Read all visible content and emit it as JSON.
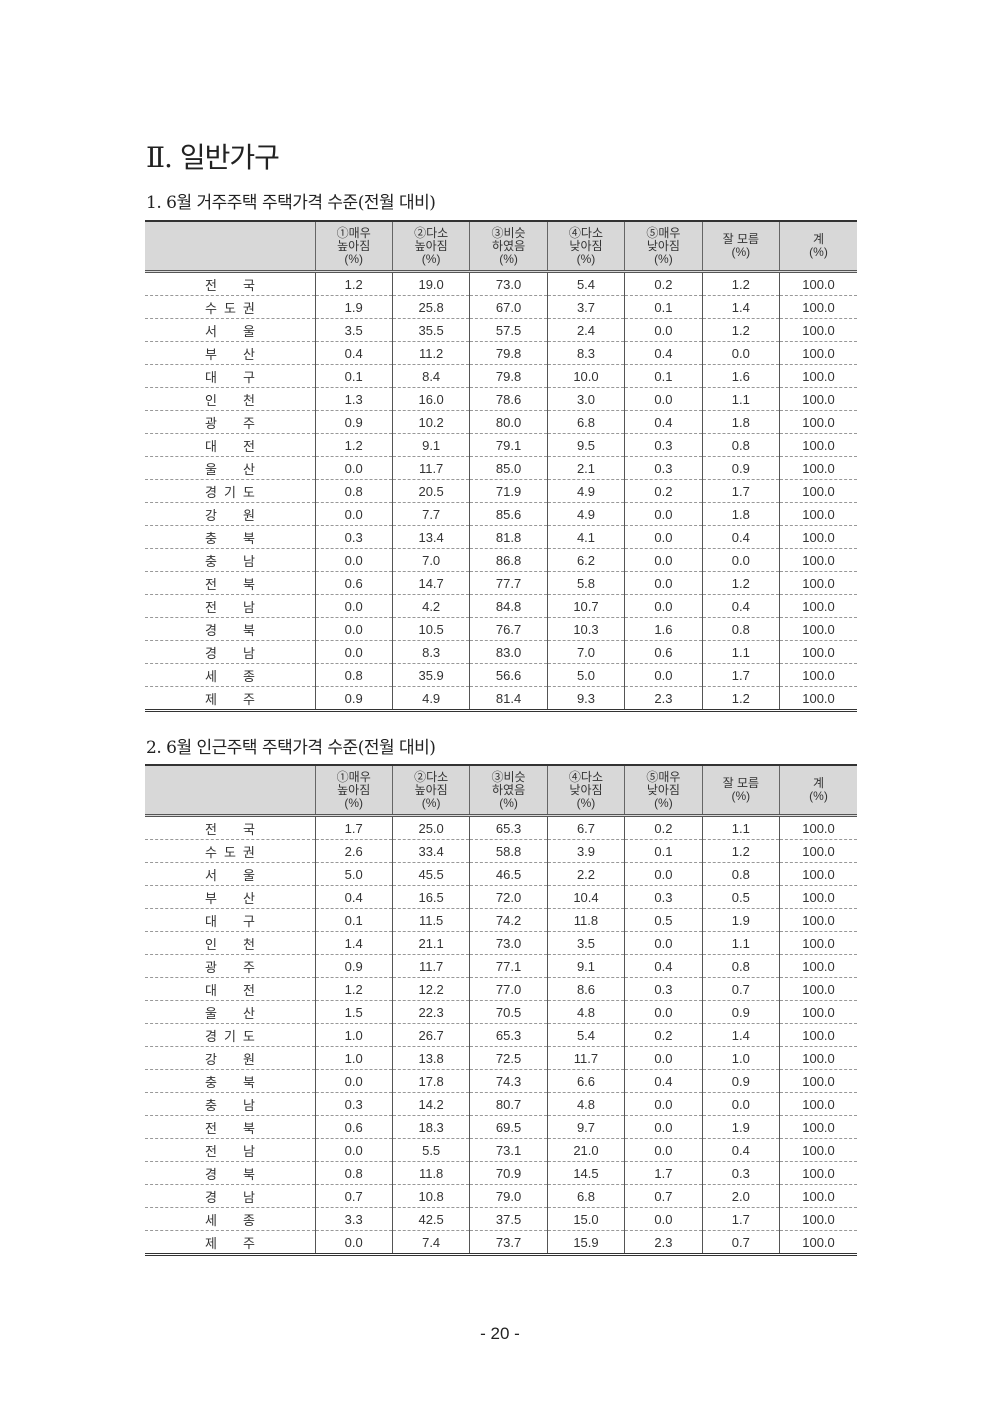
{
  "section_title": "Ⅱ. 일반가구",
  "headers": [
    "",
    "①매우\n높아짐\n(%)",
    "②다소\n높아짐\n(%)",
    "③비슷\n하였음\n(%)",
    "④다소\n낮아짐\n(%)",
    "⑤매우\n낮아짐\n(%)",
    "잘 모름\n(%)",
    "계\n(%)"
  ],
  "tables": [
    {
      "title": "1. 6월 거주주택 주택가격 수준(전월 대비)",
      "rows": [
        [
          "전국",
          "1.2",
          "19.0",
          "73.0",
          "5.4",
          "0.2",
          "1.2",
          "100.0"
        ],
        [
          "수도권",
          "1.9",
          "25.8",
          "67.0",
          "3.7",
          "0.1",
          "1.4",
          "100.0"
        ],
        [
          "서울",
          "3.5",
          "35.5",
          "57.5",
          "2.4",
          "0.0",
          "1.2",
          "100.0"
        ],
        [
          "부산",
          "0.4",
          "11.2",
          "79.8",
          "8.3",
          "0.4",
          "0.0",
          "100.0"
        ],
        [
          "대구",
          "0.1",
          "8.4",
          "79.8",
          "10.0",
          "0.1",
          "1.6",
          "100.0"
        ],
        [
          "인천",
          "1.3",
          "16.0",
          "78.6",
          "3.0",
          "0.0",
          "1.1",
          "100.0"
        ],
        [
          "광주",
          "0.9",
          "10.2",
          "80.0",
          "6.8",
          "0.4",
          "1.8",
          "100.0"
        ],
        [
          "대전",
          "1.2",
          "9.1",
          "79.1",
          "9.5",
          "0.3",
          "0.8",
          "100.0"
        ],
        [
          "울산",
          "0.0",
          "11.7",
          "85.0",
          "2.1",
          "0.3",
          "0.9",
          "100.0"
        ],
        [
          "경기도",
          "0.8",
          "20.5",
          "71.9",
          "4.9",
          "0.2",
          "1.7",
          "100.0"
        ],
        [
          "강원",
          "0.0",
          "7.7",
          "85.6",
          "4.9",
          "0.0",
          "1.8",
          "100.0"
        ],
        [
          "충북",
          "0.3",
          "13.4",
          "81.8",
          "4.1",
          "0.0",
          "0.4",
          "100.0"
        ],
        [
          "충남",
          "0.0",
          "7.0",
          "86.8",
          "6.2",
          "0.0",
          "0.0",
          "100.0"
        ],
        [
          "전북",
          "0.6",
          "14.7",
          "77.7",
          "5.8",
          "0.0",
          "1.2",
          "100.0"
        ],
        [
          "전남",
          "0.0",
          "4.2",
          "84.8",
          "10.7",
          "0.0",
          "0.4",
          "100.0"
        ],
        [
          "경북",
          "0.0",
          "10.5",
          "76.7",
          "10.3",
          "1.6",
          "0.8",
          "100.0"
        ],
        [
          "경남",
          "0.0",
          "8.3",
          "83.0",
          "7.0",
          "0.6",
          "1.1",
          "100.0"
        ],
        [
          "세종",
          "0.8",
          "35.9",
          "56.6",
          "5.0",
          "0.0",
          "1.7",
          "100.0"
        ],
        [
          "제주",
          "0.9",
          "4.9",
          "81.4",
          "9.3",
          "2.3",
          "1.2",
          "100.0"
        ]
      ]
    },
    {
      "title": "2. 6월 인근주택 주택가격 수준(전월 대비)",
      "rows": [
        [
          "전국",
          "1.7",
          "25.0",
          "65.3",
          "6.7",
          "0.2",
          "1.1",
          "100.0"
        ],
        [
          "수도권",
          "2.6",
          "33.4",
          "58.8",
          "3.9",
          "0.1",
          "1.2",
          "100.0"
        ],
        [
          "서울",
          "5.0",
          "45.5",
          "46.5",
          "2.2",
          "0.0",
          "0.8",
          "100.0"
        ],
        [
          "부산",
          "0.4",
          "16.5",
          "72.0",
          "10.4",
          "0.3",
          "0.5",
          "100.0"
        ],
        [
          "대구",
          "0.1",
          "11.5",
          "74.2",
          "11.8",
          "0.5",
          "1.9",
          "100.0"
        ],
        [
          "인천",
          "1.4",
          "21.1",
          "73.0",
          "3.5",
          "0.0",
          "1.1",
          "100.0"
        ],
        [
          "광주",
          "0.9",
          "11.7",
          "77.1",
          "9.1",
          "0.4",
          "0.8",
          "100.0"
        ],
        [
          "대전",
          "1.2",
          "12.2",
          "77.0",
          "8.6",
          "0.3",
          "0.7",
          "100.0"
        ],
        [
          "울산",
          "1.5",
          "22.3",
          "70.5",
          "4.8",
          "0.0",
          "0.9",
          "100.0"
        ],
        [
          "경기도",
          "1.0",
          "26.7",
          "65.3",
          "5.4",
          "0.2",
          "1.4",
          "100.0"
        ],
        [
          "강원",
          "1.0",
          "13.8",
          "72.5",
          "11.7",
          "0.0",
          "1.0",
          "100.0"
        ],
        [
          "충북",
          "0.0",
          "17.8",
          "74.3",
          "6.6",
          "0.4",
          "0.9",
          "100.0"
        ],
        [
          "충남",
          "0.3",
          "14.2",
          "80.7",
          "4.8",
          "0.0",
          "0.0",
          "100.0"
        ],
        [
          "전북",
          "0.6",
          "18.3",
          "69.5",
          "9.7",
          "0.0",
          "1.9",
          "100.0"
        ],
        [
          "전남",
          "0.0",
          "5.5",
          "73.1",
          "21.0",
          "0.0",
          "0.4",
          "100.0"
        ],
        [
          "경북",
          "0.8",
          "11.8",
          "70.9",
          "14.5",
          "1.7",
          "0.3",
          "100.0"
        ],
        [
          "경남",
          "0.7",
          "10.8",
          "79.0",
          "6.8",
          "0.7",
          "2.0",
          "100.0"
        ],
        [
          "세종",
          "3.3",
          "42.5",
          "37.5",
          "15.0",
          "0.0",
          "1.7",
          "100.0"
        ],
        [
          "제주",
          "0.0",
          "7.4",
          "73.7",
          "15.9",
          "2.3",
          "0.7",
          "100.0"
        ]
      ]
    }
  ],
  "page_number": "- 20 -"
}
